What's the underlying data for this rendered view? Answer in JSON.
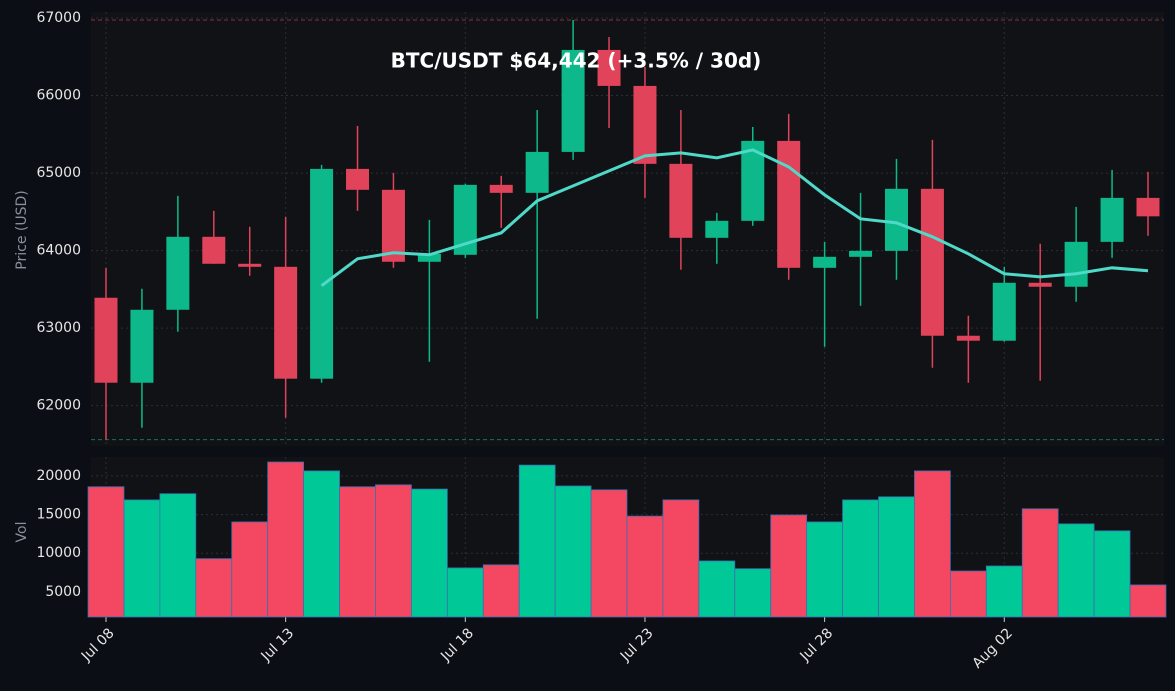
{
  "chart_data": {
    "type": "candlestick",
    "title": "BTC/USDT   $64,442   (+3.5% / 30d)",
    "ylabel": "Price (USD)",
    "categories": [
      "Jul 08",
      null,
      null,
      null,
      null,
      "Jul 13",
      null,
      null,
      null,
      null,
      "Jul 18",
      null,
      null,
      null,
      null,
      "Jul 23",
      null,
      null,
      null,
      null,
      "Jul 28",
      null,
      null,
      null,
      null,
      "Aug 02",
      null,
      null,
      null,
      null
    ],
    "open": [
      63392,
      62296,
      63237,
      64178,
      63830,
      63791,
      62348,
      65054,
      64784,
      63856,
      63946,
      64848,
      64745,
      65273,
      66588,
      66124,
      65119,
      64165,
      64384,
      65415,
      63778,
      63920,
      63997,
      64797,
      62902,
      62838,
      63585,
      63534,
      64113,
      64680
    ],
    "high": [
      63778,
      63508,
      64706,
      64513,
      64307,
      64436,
      65106,
      65608,
      65003,
      64397,
      64862,
      64964,
      65814,
      66974,
      66755,
      66369,
      65814,
      64487,
      65595,
      65763,
      64113,
      64745,
      65183,
      65428,
      63160,
      63791,
      64088,
      64564,
      65041,
      65016
    ],
    "low": [
      61562,
      61716,
      62954,
      63830,
      63675,
      61845,
      62296,
      64513,
      63778,
      62567,
      63907,
      64294,
      63121,
      65170,
      65582,
      64680,
      63753,
      63830,
      64320,
      63624,
      62760,
      63289,
      63624,
      62490,
      62296,
      62825,
      62322,
      63340,
      63907,
      64191
    ],
    "close": [
      62296,
      63237,
      64178,
      63830,
      63791,
      62348,
      65054,
      64784,
      63856,
      63959,
      64848,
      64745,
      65273,
      66588,
      66124,
      65119,
      64165,
      64384,
      65415,
      63778,
      63920,
      63997,
      64797,
      62902,
      62838,
      63585,
      63534,
      64113,
      64680,
      64442
    ],
    "up_color": "#0db98a",
    "down_color": "#e0435a",
    "ma": {
      "color": "#4fd9c9",
      "values": [
        null,
        null,
        null,
        null,
        null,
        null,
        63547,
        63894,
        63972,
        63946,
        64088,
        64229,
        64642,
        64835,
        65028,
        65222,
        65260,
        65196,
        65299,
        65080,
        64719,
        64410,
        64358,
        64178,
        63959,
        63701,
        63662,
        63701,
        63778,
        63740
      ]
    },
    "ylim": [
      61480,
      67000
    ],
    "yticks": [
      62000,
      63000,
      64000,
      65000,
      66000,
      67000
    ],
    "grid": true,
    "volume": {
      "ylabel": "Vol",
      "values": [
        18600,
        16900,
        17700,
        9300,
        14050,
        21800,
        20650,
        18600,
        18850,
        18300,
        8100,
        8500,
        21400,
        18700,
        18200,
        14800,
        16900,
        9000,
        8000,
        14950,
        14050,
        16900,
        17300,
        20650,
        7700,
        8350,
        15750,
        13800,
        12900,
        5900
      ],
      "up_color": "#00c896",
      "down_color": "#f44862",
      "ylim": [
        1750,
        22450
      ],
      "yticks": [
        5000,
        10000,
        15000,
        20000
      ]
    }
  }
}
